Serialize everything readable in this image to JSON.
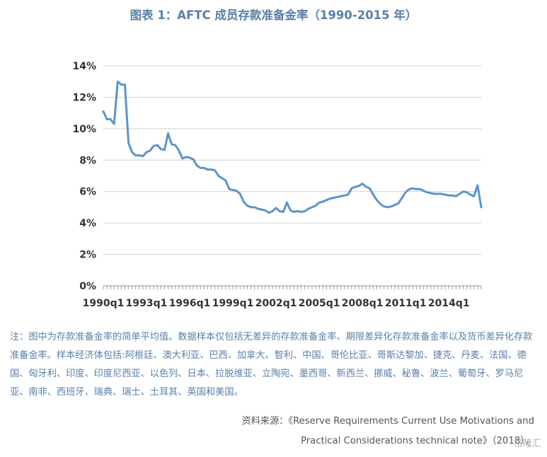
{
  "title": "图表 1：AFTC 成员存款准备金率（1990-2015 年）",
  "note": "注：图中为存款准备金率的简单平均值。数据样本仅包括无差异的存款准备金率、期限差异化存款准备金率以及货币差异化存款准备金率。样本经济体包括:阿根廷、澳大利亚、巴西、加拿大、智利、中国、哥伦比亚、哥斯达黎加、捷克、丹麦、法国、德国、匈牙利、印度、印度尼西亚、以色列、日本、拉脱维亚、立陶宛、墨西哥、新西兰、挪威、秘鲁、波兰、葡萄牙、罗马尼亚、南非、西班牙、瑞典、瑞士、土耳其、英国和美国。",
  "source_line1": "资料来源：《Reserve Requirements Current Use Motivations and",
  "source_line2": "Practical Considerations technical note》（2018），",
  "watermark_text": "格隆汇",
  "colors": {
    "line": "#5b95c9",
    "title": "#5a7fa8",
    "axis": "#999999",
    "grid": "#d0d0d0"
  },
  "chart_data": {
    "type": "line",
    "title": "图表 1：AFTC 成员存款准备金率（1990-2015 年）",
    "xlabel": "",
    "ylabel": "",
    "y_unit": "%",
    "ylim": [
      0,
      14
    ],
    "yticks": [
      0,
      2,
      4,
      6,
      8,
      10,
      12,
      14
    ],
    "ytick_labels": [
      "0%",
      "2%",
      "4%",
      "6%",
      "8%",
      "10%",
      "12%",
      "14%"
    ],
    "xtick_labels": [
      "1990q1",
      "1993q1",
      "1996q1",
      "1999q1",
      "2002q1",
      "2005q1",
      "2008q1",
      "2011q1",
      "2014q1"
    ],
    "xtick_step_quarters": 12,
    "grid": true,
    "legend": "none",
    "series": [
      {
        "values": [
          11.1,
          10.6,
          10.6,
          10.3,
          13.0,
          12.8,
          12.8,
          9.1,
          8.5,
          8.3,
          8.3,
          8.25,
          8.5,
          8.6,
          8.9,
          8.95,
          8.7,
          8.65,
          9.7,
          9.0,
          8.95,
          8.6,
          8.1,
          8.2,
          8.15,
          8.05,
          7.65,
          7.5,
          7.5,
          7.4,
          7.4,
          7.35,
          7.0,
          6.85,
          6.7,
          6.15,
          6.1,
          6.05,
          5.85,
          5.35,
          5.1,
          5.0,
          5.0,
          4.9,
          4.85,
          4.8,
          4.65,
          4.75,
          4.95,
          4.75,
          4.7,
          5.3,
          4.8,
          4.7,
          4.75,
          4.7,
          4.75,
          4.9,
          5.0,
          5.1,
          5.3,
          5.35,
          5.45,
          5.55,
          5.6,
          5.65,
          5.7,
          5.75,
          5.8,
          6.2,
          6.3,
          6.35,
          6.5,
          6.3,
          6.2,
          5.8,
          5.45,
          5.2,
          5.05,
          5.0,
          5.05,
          5.15,
          5.25,
          5.6,
          5.95,
          6.15,
          6.2,
          6.15,
          6.15,
          6.05,
          5.95,
          5.9,
          5.85,
          5.85,
          5.85,
          5.8,
          5.75,
          5.75,
          5.7,
          5.85,
          6.0,
          5.95,
          5.8,
          5.7,
          6.4,
          5.0
        ]
      }
    ]
  }
}
